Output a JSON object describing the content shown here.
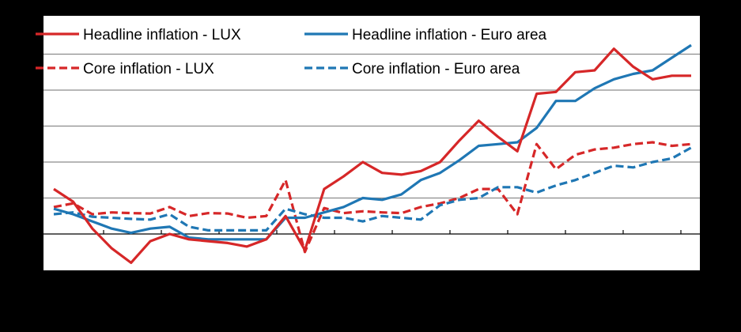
{
  "chart_data": {
    "type": "line",
    "title": "",
    "xlabel": "",
    "ylabel": "",
    "ylim": [
      -1,
      5.5
    ],
    "grid": true,
    "legend_position": "top",
    "x": [
      0,
      1,
      2,
      3,
      4,
      5,
      6,
      7,
      8,
      9,
      10,
      11,
      12,
      13,
      14,
      15,
      16,
      17,
      18,
      19,
      20,
      21,
      22,
      23,
      24,
      25,
      26,
      27,
      28,
      29,
      30,
      31,
      32,
      33
    ],
    "series": [
      {
        "name": "Headline inflation - LUX",
        "color": "#d62728",
        "dash": "solid",
        "values": [
          1.25,
          0.9,
          0.15,
          -0.4,
          -0.8,
          -0.2,
          0.0,
          -0.15,
          -0.2,
          -0.25,
          -0.35,
          -0.15,
          0.5,
          -0.45,
          1.25,
          1.6,
          2.0,
          1.7,
          1.65,
          1.75,
          2.0,
          2.6,
          3.15,
          2.7,
          2.3,
          3.9,
          3.95,
          4.5,
          4.55,
          5.15,
          4.65,
          4.3,
          4.4,
          4.4
        ]
      },
      {
        "name": "Headline inflation - Euro area",
        "color": "#1f77b4",
        "dash": "solid",
        "values": [
          0.7,
          0.55,
          0.35,
          0.15,
          0.03,
          0.15,
          0.2,
          -0.1,
          -0.15,
          -0.15,
          -0.15,
          -0.15,
          0.45,
          0.45,
          0.6,
          0.75,
          1.0,
          0.95,
          1.1,
          1.5,
          1.7,
          2.05,
          2.45,
          2.5,
          2.55,
          2.95,
          3.7,
          3.7,
          4.05,
          4.3,
          4.45,
          4.55,
          4.9,
          5.25
        ]
      },
      {
        "name": "Core inflation - LUX",
        "color": "#d62728",
        "dash": "dashed",
        "values": [
          0.75,
          0.85,
          0.55,
          0.6,
          0.58,
          0.57,
          0.75,
          0.5,
          0.58,
          0.57,
          0.45,
          0.5,
          1.5,
          -0.5,
          0.72,
          0.58,
          0.63,
          0.6,
          0.58,
          0.75,
          0.85,
          1.0,
          1.25,
          1.25,
          0.55,
          2.5,
          1.8,
          2.2,
          2.35,
          2.4,
          2.5,
          2.55,
          2.45,
          2.5
        ]
      },
      {
        "name": "Core inflation - Euro area",
        "color": "#1f77b4",
        "dash": "dashed",
        "values": [
          0.55,
          0.6,
          0.48,
          0.45,
          0.42,
          0.4,
          0.55,
          0.2,
          0.1,
          0.1,
          0.1,
          0.1,
          0.7,
          0.55,
          0.45,
          0.45,
          0.35,
          0.5,
          0.45,
          0.4,
          0.8,
          0.95,
          1.0,
          1.3,
          1.3,
          1.15,
          1.35,
          1.5,
          1.7,
          1.9,
          1.85,
          2.0,
          2.1,
          2.4
        ]
      }
    ]
  }
}
